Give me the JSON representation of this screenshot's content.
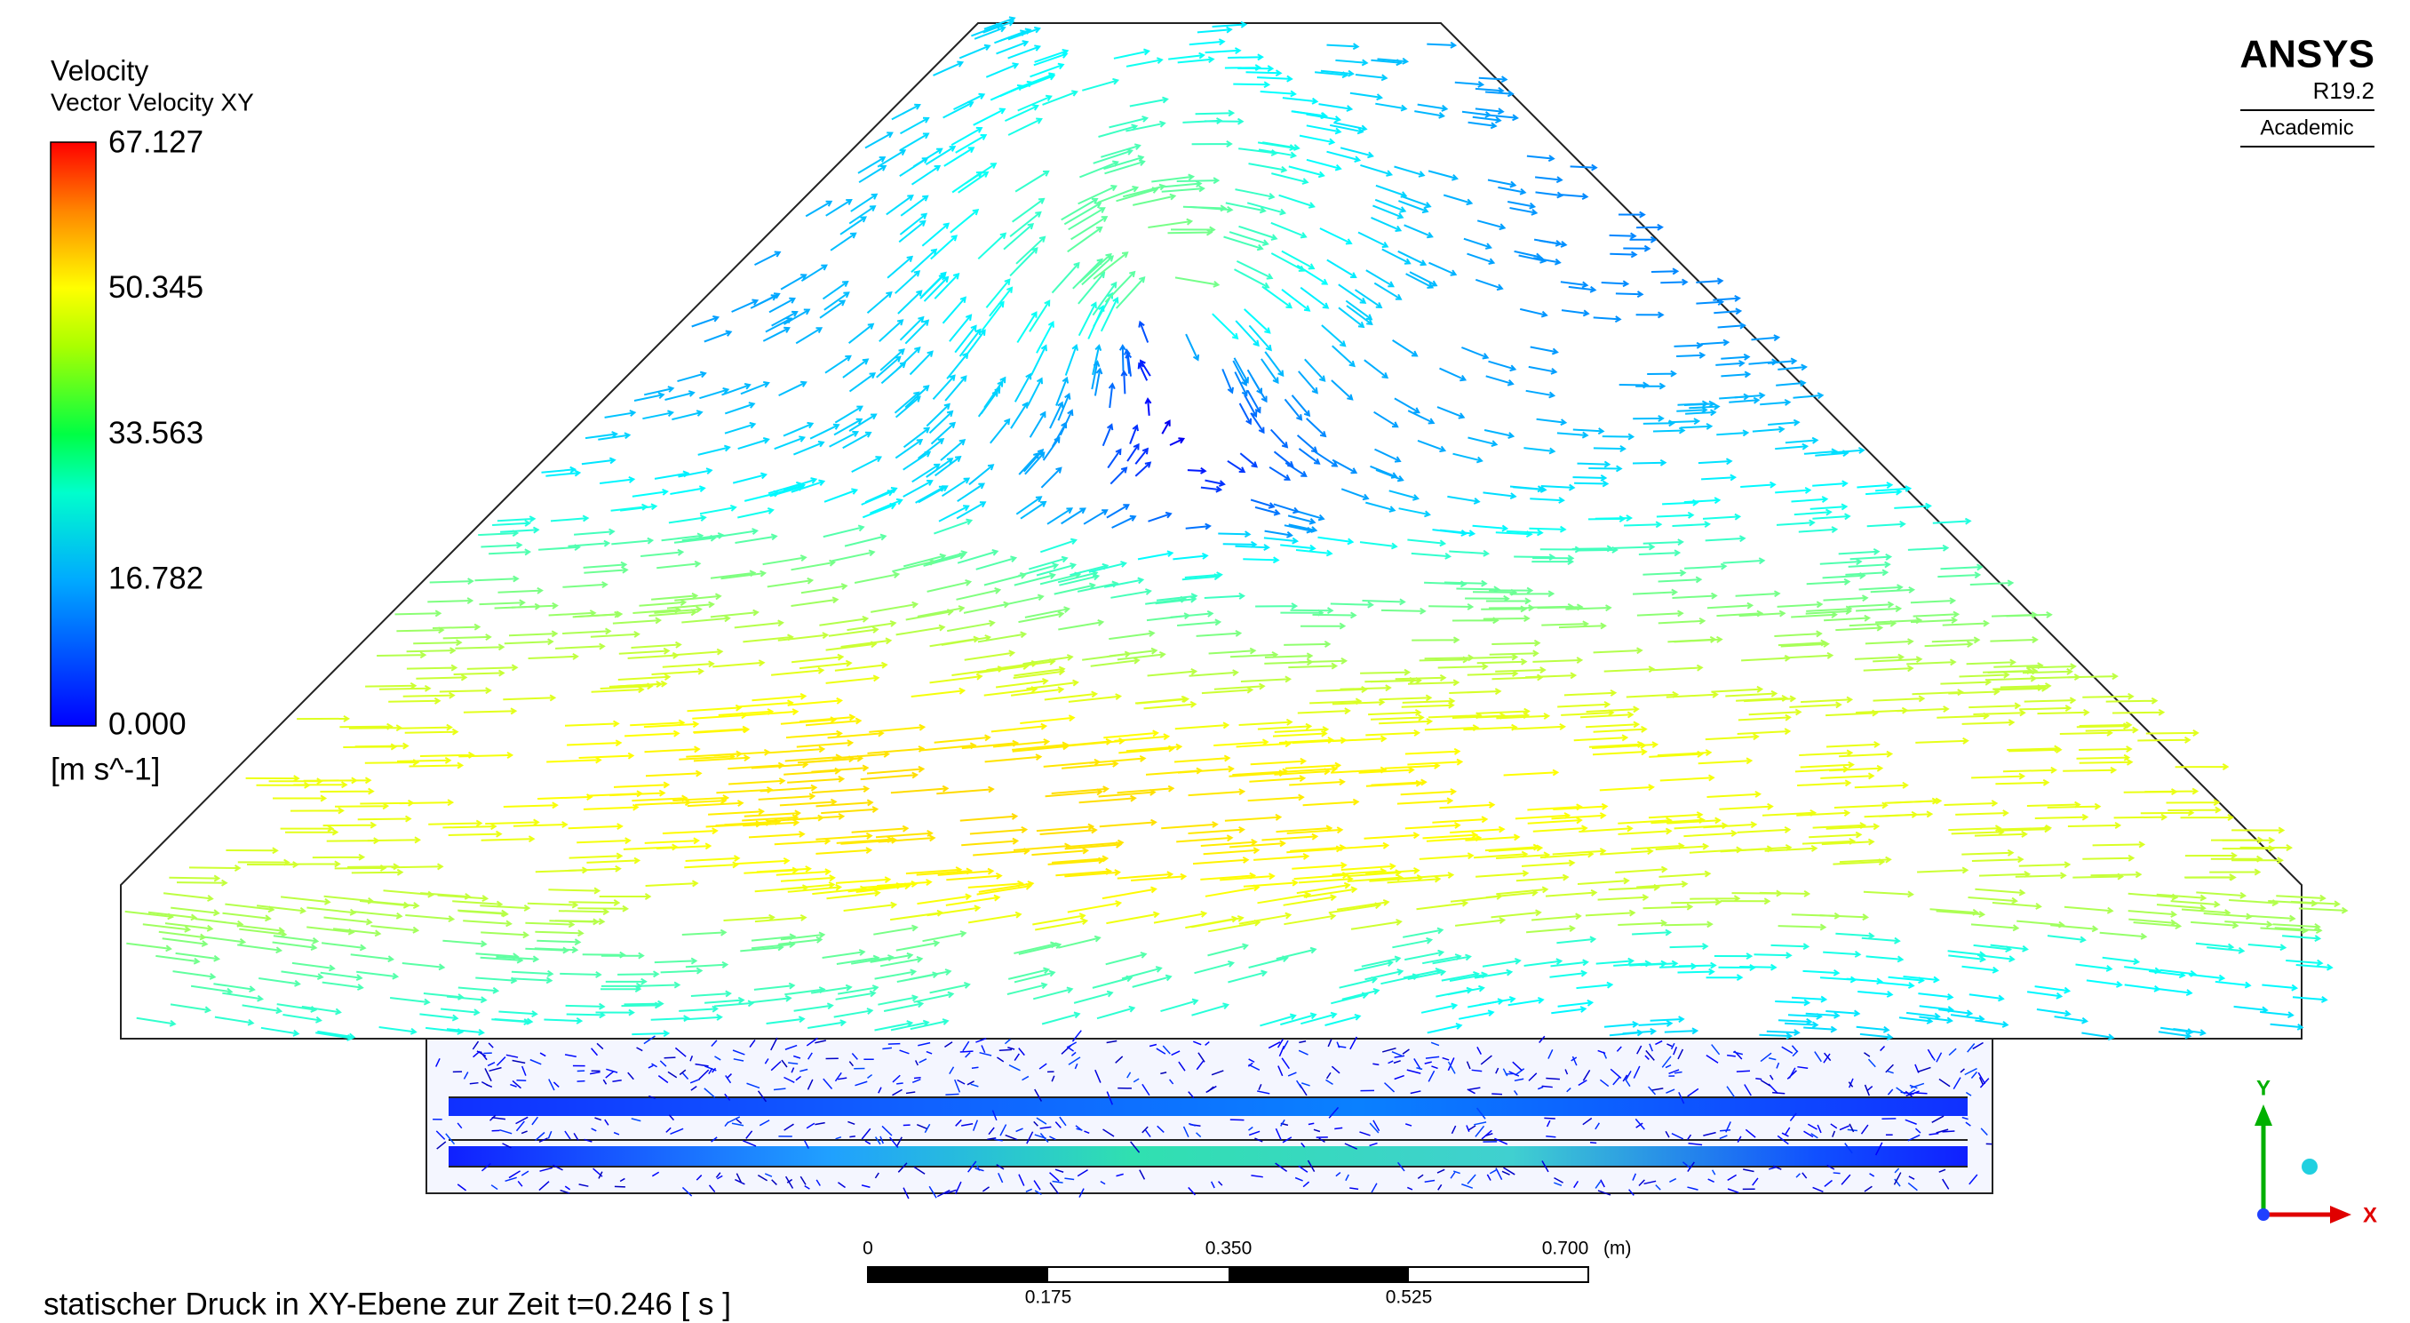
{
  "legend": {
    "title": "Velocity",
    "subtitle": "Vector Velocity XY",
    "ticks": [
      "67.127",
      "50.345",
      "33.563",
      "16.782",
      "0.000"
    ],
    "unit": "[m s^-1]"
  },
  "logo": {
    "name": "ANSYS",
    "version": "R19.2",
    "edition": "Academic"
  },
  "scale_bar": {
    "top_labels": [
      "0",
      "0.350",
      "0.700"
    ],
    "unit": "(m)",
    "bottom_labels": [
      "0.175",
      "0.525"
    ]
  },
  "caption": "statischer Druck in XY-Ebene zur Zeit t=0.246 [ s ]",
  "triad": {
    "y": "Y",
    "x": "X"
  }
}
